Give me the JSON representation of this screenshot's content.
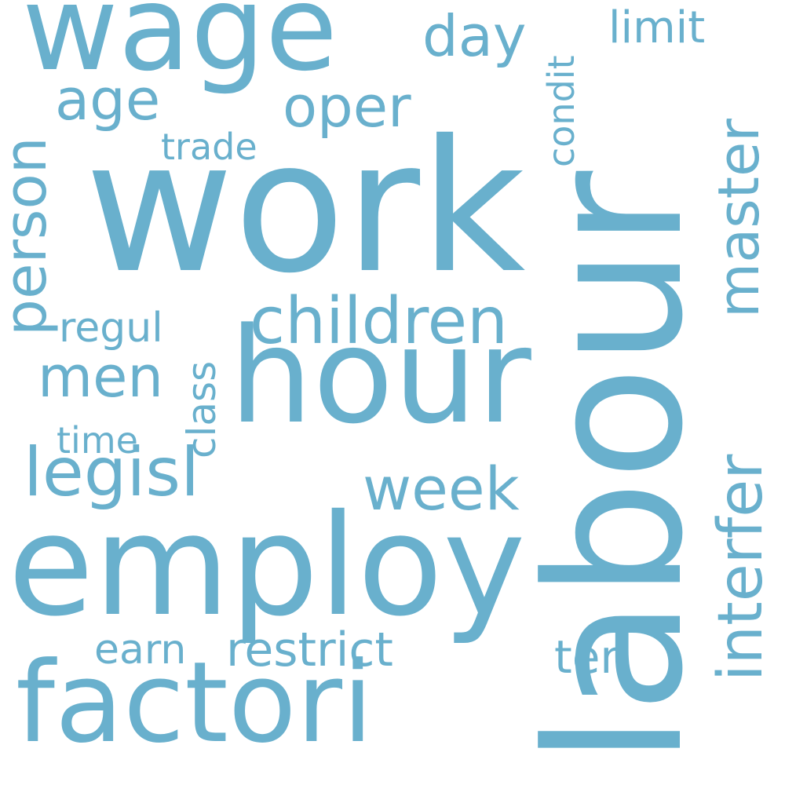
{
  "wordcloud": {
    "color": "#69b0cd",
    "background": "#ffffff",
    "words": {
      "work": "work",
      "labour": "labour",
      "employ": "employ",
      "hour": "hour",
      "wage": "wage",
      "factori": "factori",
      "children": "children",
      "master": "master",
      "interfer": "interfer",
      "person": "person",
      "legisl": "legisl",
      "week": "week",
      "men": "men",
      "oper": "oper",
      "age": "age",
      "day": "day",
      "condit": "condit",
      "limit": "limit",
      "trade": "trade",
      "regul": "regul",
      "class": "class",
      "time": "time",
      "restrict": "restrict",
      "earn": "earn",
      "ten": "ten"
    }
  }
}
